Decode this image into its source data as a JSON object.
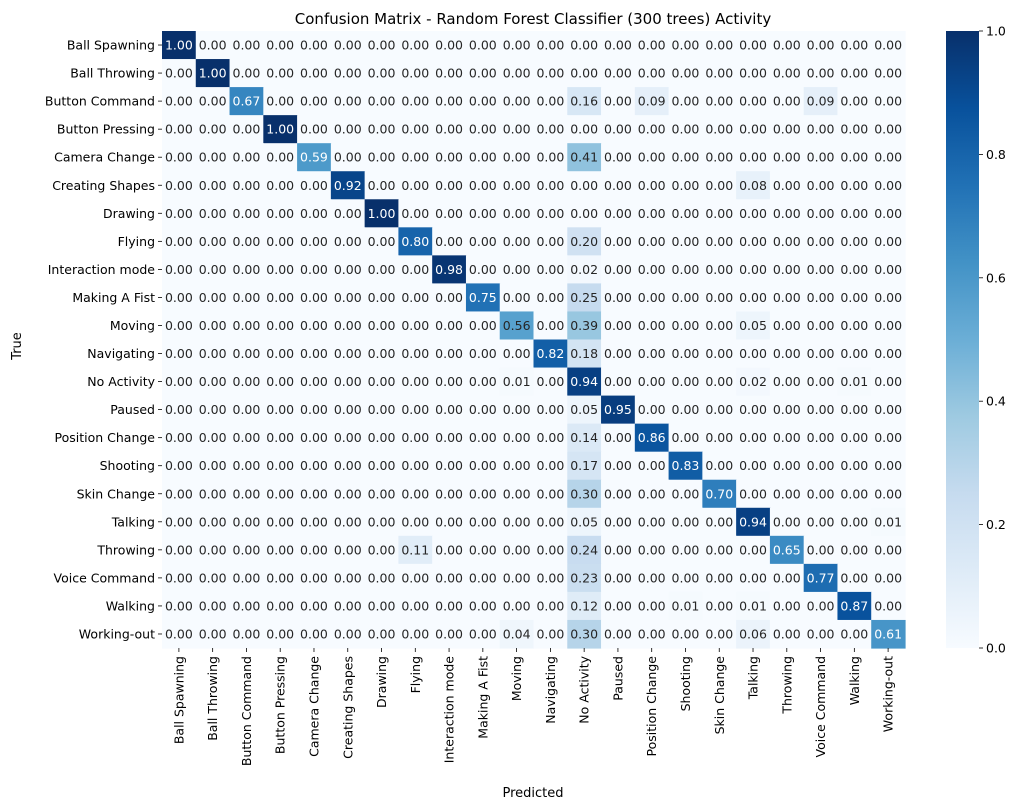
{
  "chart_data": {
    "type": "heatmap",
    "title": "Confusion Matrix - Random Forest Classifier (300 trees) Activity",
    "xlabel": "Predicted",
    "ylabel": "True",
    "labels": [
      "Ball Spawning",
      "Ball Throwing",
      "Button Command",
      "Button Pressing",
      "Camera Change",
      "Creating Shapes",
      "Drawing",
      "Flying",
      "Interaction mode",
      "Making A Fist",
      "Moving",
      "Navigating",
      "No Activity",
      "Paused",
      "Position Change",
      "Shooting",
      "Skin Change",
      "Talking",
      "Throwing",
      "Voice Command",
      "Walking",
      "Working-out"
    ],
    "value_format": "2 decimals",
    "colormap": "Blues",
    "colorbar": {
      "min": 0.0,
      "max": 1.0,
      "ticks": [
        0.0,
        0.2,
        0.4,
        0.6,
        0.8,
        1.0
      ],
      "tick_labels": [
        "0.0",
        "0.2",
        "0.4",
        "0.6",
        "0.8",
        "1.0"
      ]
    },
    "matrix": [
      [
        1.0,
        0,
        0,
        0,
        0,
        0,
        0,
        0,
        0,
        0,
        0,
        0,
        0,
        0,
        0,
        0,
        0,
        0,
        0,
        0,
        0,
        0
      ],
      [
        0,
        1.0,
        0,
        0,
        0,
        0,
        0,
        0,
        0,
        0,
        0,
        0,
        0,
        0,
        0,
        0,
        0,
        0,
        0,
        0,
        0,
        0
      ],
      [
        0,
        0,
        0.67,
        0,
        0,
        0,
        0,
        0,
        0,
        0,
        0,
        0,
        0.16,
        0,
        0.09,
        0,
        0,
        0,
        0,
        0.09,
        0,
        0
      ],
      [
        0,
        0,
        0,
        1.0,
        0,
        0,
        0,
        0,
        0,
        0,
        0,
        0,
        0,
        0,
        0,
        0,
        0,
        0,
        0,
        0,
        0,
        0
      ],
      [
        0,
        0,
        0,
        0,
        0.59,
        0,
        0,
        0,
        0,
        0,
        0,
        0,
        0.41,
        0,
        0,
        0,
        0,
        0,
        0,
        0,
        0,
        0
      ],
      [
        0,
        0,
        0,
        0,
        0,
        0.92,
        0,
        0,
        0,
        0,
        0,
        0,
        0,
        0,
        0,
        0,
        0,
        0.08,
        0,
        0,
        0,
        0
      ],
      [
        0,
        0,
        0,
        0,
        0,
        0,
        1.0,
        0,
        0,
        0,
        0,
        0,
        0,
        0,
        0,
        0,
        0,
        0,
        0,
        0,
        0,
        0
      ],
      [
        0,
        0,
        0,
        0,
        0,
        0,
        0,
        0.8,
        0,
        0,
        0,
        0,
        0.2,
        0,
        0,
        0,
        0,
        0,
        0,
        0,
        0,
        0
      ],
      [
        0,
        0,
        0,
        0,
        0,
        0,
        0,
        0,
        0.98,
        0,
        0,
        0,
        0.02,
        0,
        0,
        0,
        0,
        0,
        0,
        0,
        0,
        0
      ],
      [
        0,
        0,
        0,
        0,
        0,
        0,
        0,
        0,
        0,
        0.75,
        0,
        0,
        0.25,
        0,
        0,
        0,
        0,
        0,
        0,
        0,
        0,
        0
      ],
      [
        0,
        0,
        0,
        0,
        0,
        0,
        0,
        0,
        0,
        0,
        0.56,
        0,
        0.39,
        0,
        0,
        0,
        0,
        0.05,
        0,
        0,
        0,
        0
      ],
      [
        0,
        0,
        0,
        0,
        0,
        0,
        0,
        0,
        0,
        0,
        0,
        0.82,
        0.18,
        0,
        0,
        0,
        0,
        0,
        0,
        0,
        0,
        0
      ],
      [
        0,
        0,
        0,
        0,
        0,
        0,
        0,
        0,
        0,
        0,
        0.01,
        0,
        0.94,
        0,
        0,
        0,
        0,
        0.02,
        0,
        0,
        0.01,
        0
      ],
      [
        0,
        0,
        0,
        0,
        0,
        0,
        0,
        0,
        0,
        0,
        0,
        0,
        0.05,
        0.95,
        0,
        0,
        0,
        0,
        0,
        0,
        0,
        0
      ],
      [
        0,
        0,
        0,
        0,
        0,
        0,
        0,
        0,
        0,
        0,
        0,
        0,
        0.14,
        0,
        0.86,
        0,
        0,
        0,
        0,
        0,
        0,
        0
      ],
      [
        0,
        0,
        0,
        0,
        0,
        0,
        0,
        0,
        0,
        0,
        0,
        0,
        0.17,
        0,
        0,
        0.83,
        0,
        0,
        0,
        0,
        0,
        0
      ],
      [
        0,
        0,
        0,
        0,
        0,
        0,
        0,
        0,
        0,
        0,
        0,
        0,
        0.3,
        0,
        0,
        0,
        0.7,
        0,
        0,
        0,
        0,
        0
      ],
      [
        0,
        0,
        0,
        0,
        0,
        0,
        0,
        0,
        0,
        0,
        0,
        0,
        0.05,
        0,
        0,
        0,
        0,
        0.94,
        0,
        0,
        0,
        0.01
      ],
      [
        0,
        0,
        0,
        0,
        0,
        0,
        0,
        0.11,
        0,
        0,
        0,
        0,
        0.24,
        0,
        0,
        0,
        0,
        0,
        0.65,
        0,
        0,
        0
      ],
      [
        0,
        0,
        0,
        0,
        0,
        0,
        0,
        0,
        0,
        0,
        0,
        0,
        0.23,
        0,
        0,
        0,
        0,
        0,
        0,
        0.77,
        0,
        0
      ],
      [
        0,
        0,
        0,
        0,
        0,
        0,
        0,
        0,
        0,
        0,
        0,
        0,
        0.12,
        0,
        0,
        0.01,
        0,
        0.01,
        0,
        0,
        0.87,
        0
      ],
      [
        0,
        0,
        0,
        0,
        0,
        0,
        0,
        0,
        0,
        0,
        0.04,
        0,
        0.3,
        0,
        0,
        0,
        0,
        0.06,
        0,
        0,
        0,
        0.61
      ]
    ]
  }
}
